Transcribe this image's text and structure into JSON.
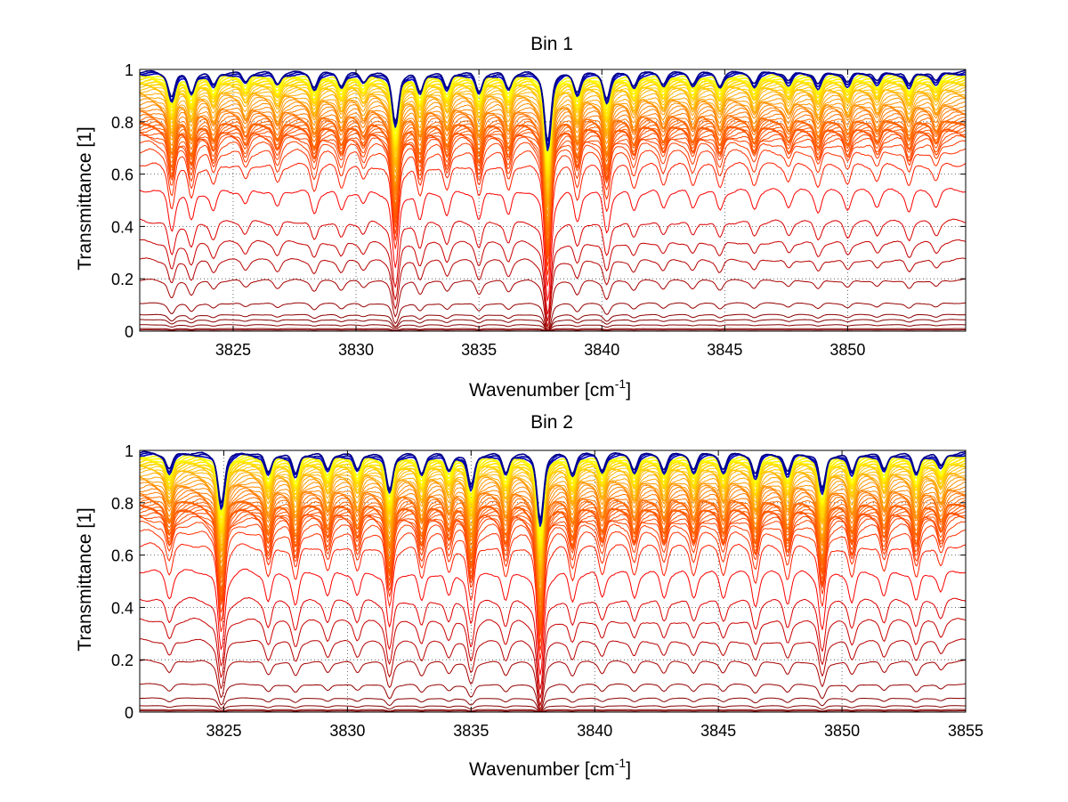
{
  "chart_data": [
    {
      "type": "line",
      "title": "Bin 1",
      "xlabel": "Wavenumber [cm",
      "xlabel_superscript": "-1",
      "xlabel_suffix": "]",
      "ylabel": "Transmittance [1]",
      "xlim": [
        3821.2,
        3854.8
      ],
      "ylim": [
        0,
        1
      ],
      "xticks": [
        "3825",
        "3830",
        "3835",
        "3840",
        "3845",
        "3850"
      ],
      "yticks": [
        "0",
        "0.2",
        "0.4",
        "0.6",
        "0.8",
        "1"
      ],
      "grid": true,
      "colormap": "jet",
      "series_levels": [
        0.0,
        0.005,
        0.01,
        0.025,
        0.045,
        0.065,
        0.11,
        0.2,
        0.28,
        0.35,
        0.43,
        0.55,
        0.65,
        0.7,
        0.73,
        0.75,
        0.76,
        0.77,
        0.78,
        0.785,
        0.79,
        0.795,
        0.8,
        0.805,
        0.81,
        0.815,
        0.82,
        0.83,
        0.84,
        0.85,
        0.86,
        0.87,
        0.88,
        0.89,
        0.9,
        0.91,
        0.92,
        0.93,
        0.935,
        0.94,
        0.945,
        0.95,
        0.955,
        0.96,
        0.965,
        0.97,
        0.975,
        0.98,
        0.985,
        0.99,
        0.993,
        0.996
      ],
      "absorption_lines": [
        {
          "x": 3822.5,
          "depth": 0.15
        },
        {
          "x": 3823.3,
          "depth": 0.12
        },
        {
          "x": 3824.2,
          "depth": 0.08
        },
        {
          "x": 3825.5,
          "depth": 0.06
        },
        {
          "x": 3826.8,
          "depth": 0.07
        },
        {
          "x": 3828.3,
          "depth": 0.09
        },
        {
          "x": 3829.4,
          "depth": 0.08
        },
        {
          "x": 3830.3,
          "depth": 0.06
        },
        {
          "x": 3831.6,
          "depth": 0.3
        },
        {
          "x": 3832.6,
          "depth": 0.12
        },
        {
          "x": 3833.7,
          "depth": 0.1
        },
        {
          "x": 3835.0,
          "depth": 0.12
        },
        {
          "x": 3836.2,
          "depth": 0.1
        },
        {
          "x": 3837.8,
          "depth": 0.42
        },
        {
          "x": 3839.0,
          "depth": 0.12
        },
        {
          "x": 3840.2,
          "depth": 0.16
        },
        {
          "x": 3841.3,
          "depth": 0.08
        },
        {
          "x": 3842.5,
          "depth": 0.07
        },
        {
          "x": 3843.7,
          "depth": 0.07
        },
        {
          "x": 3844.8,
          "depth": 0.08
        },
        {
          "x": 3846.2,
          "depth": 0.07
        },
        {
          "x": 3847.6,
          "depth": 0.06
        },
        {
          "x": 3848.8,
          "depth": 0.08
        },
        {
          "x": 3850.0,
          "depth": 0.07
        },
        {
          "x": 3851.2,
          "depth": 0.06
        },
        {
          "x": 3852.5,
          "depth": 0.08
        },
        {
          "x": 3853.6,
          "depth": 0.06
        }
      ]
    },
    {
      "type": "line",
      "title": "Bin 2",
      "xlabel": "Wavenumber [cm",
      "xlabel_superscript": "-1",
      "xlabel_suffix": "]",
      "ylabel": "Transmittance [1]",
      "xlim": [
        3821.6,
        3855.0
      ],
      "ylim": [
        0,
        1
      ],
      "xticks": [
        "3825",
        "3830",
        "3835",
        "3840",
        "3845",
        "3850",
        "3855"
      ],
      "yticks": [
        "0",
        "0.2",
        "0.4",
        "0.6",
        "0.8",
        "1"
      ],
      "grid": true,
      "colormap": "jet",
      "series_levels": [
        0.0,
        0.005,
        0.01,
        0.025,
        0.055,
        0.11,
        0.2,
        0.28,
        0.36,
        0.44,
        0.55,
        0.65,
        0.7,
        0.73,
        0.75,
        0.76,
        0.77,
        0.78,
        0.785,
        0.79,
        0.795,
        0.8,
        0.805,
        0.81,
        0.815,
        0.82,
        0.83,
        0.84,
        0.85,
        0.86,
        0.87,
        0.88,
        0.89,
        0.9,
        0.91,
        0.92,
        0.93,
        0.935,
        0.94,
        0.945,
        0.95,
        0.955,
        0.96,
        0.965,
        0.97,
        0.975,
        0.98,
        0.985,
        0.99,
        0.993,
        0.996
      ],
      "absorption_lines": [
        {
          "x": 3822.8,
          "depth": 0.1
        },
        {
          "x": 3824.9,
          "depth": 0.3
        },
        {
          "x": 3826.8,
          "depth": 0.12
        },
        {
          "x": 3827.9,
          "depth": 0.13
        },
        {
          "x": 3829.2,
          "depth": 0.1
        },
        {
          "x": 3830.4,
          "depth": 0.1
        },
        {
          "x": 3831.7,
          "depth": 0.22
        },
        {
          "x": 3833.0,
          "depth": 0.12
        },
        {
          "x": 3834.1,
          "depth": 0.1
        },
        {
          "x": 3835.0,
          "depth": 0.2
        },
        {
          "x": 3836.4,
          "depth": 0.12
        },
        {
          "x": 3837.8,
          "depth": 0.4
        },
        {
          "x": 3839.1,
          "depth": 0.12
        },
        {
          "x": 3840.3,
          "depth": 0.1
        },
        {
          "x": 3841.6,
          "depth": 0.1
        },
        {
          "x": 3842.8,
          "depth": 0.1
        },
        {
          "x": 3844.0,
          "depth": 0.1
        },
        {
          "x": 3845.2,
          "depth": 0.1
        },
        {
          "x": 3846.5,
          "depth": 0.13
        },
        {
          "x": 3847.8,
          "depth": 0.12
        },
        {
          "x": 3849.2,
          "depth": 0.22
        },
        {
          "x": 3850.4,
          "depth": 0.12
        },
        {
          "x": 3851.7,
          "depth": 0.1
        },
        {
          "x": 3853.0,
          "depth": 0.12
        },
        {
          "x": 3854.0,
          "depth": 0.08
        }
      ]
    }
  ]
}
